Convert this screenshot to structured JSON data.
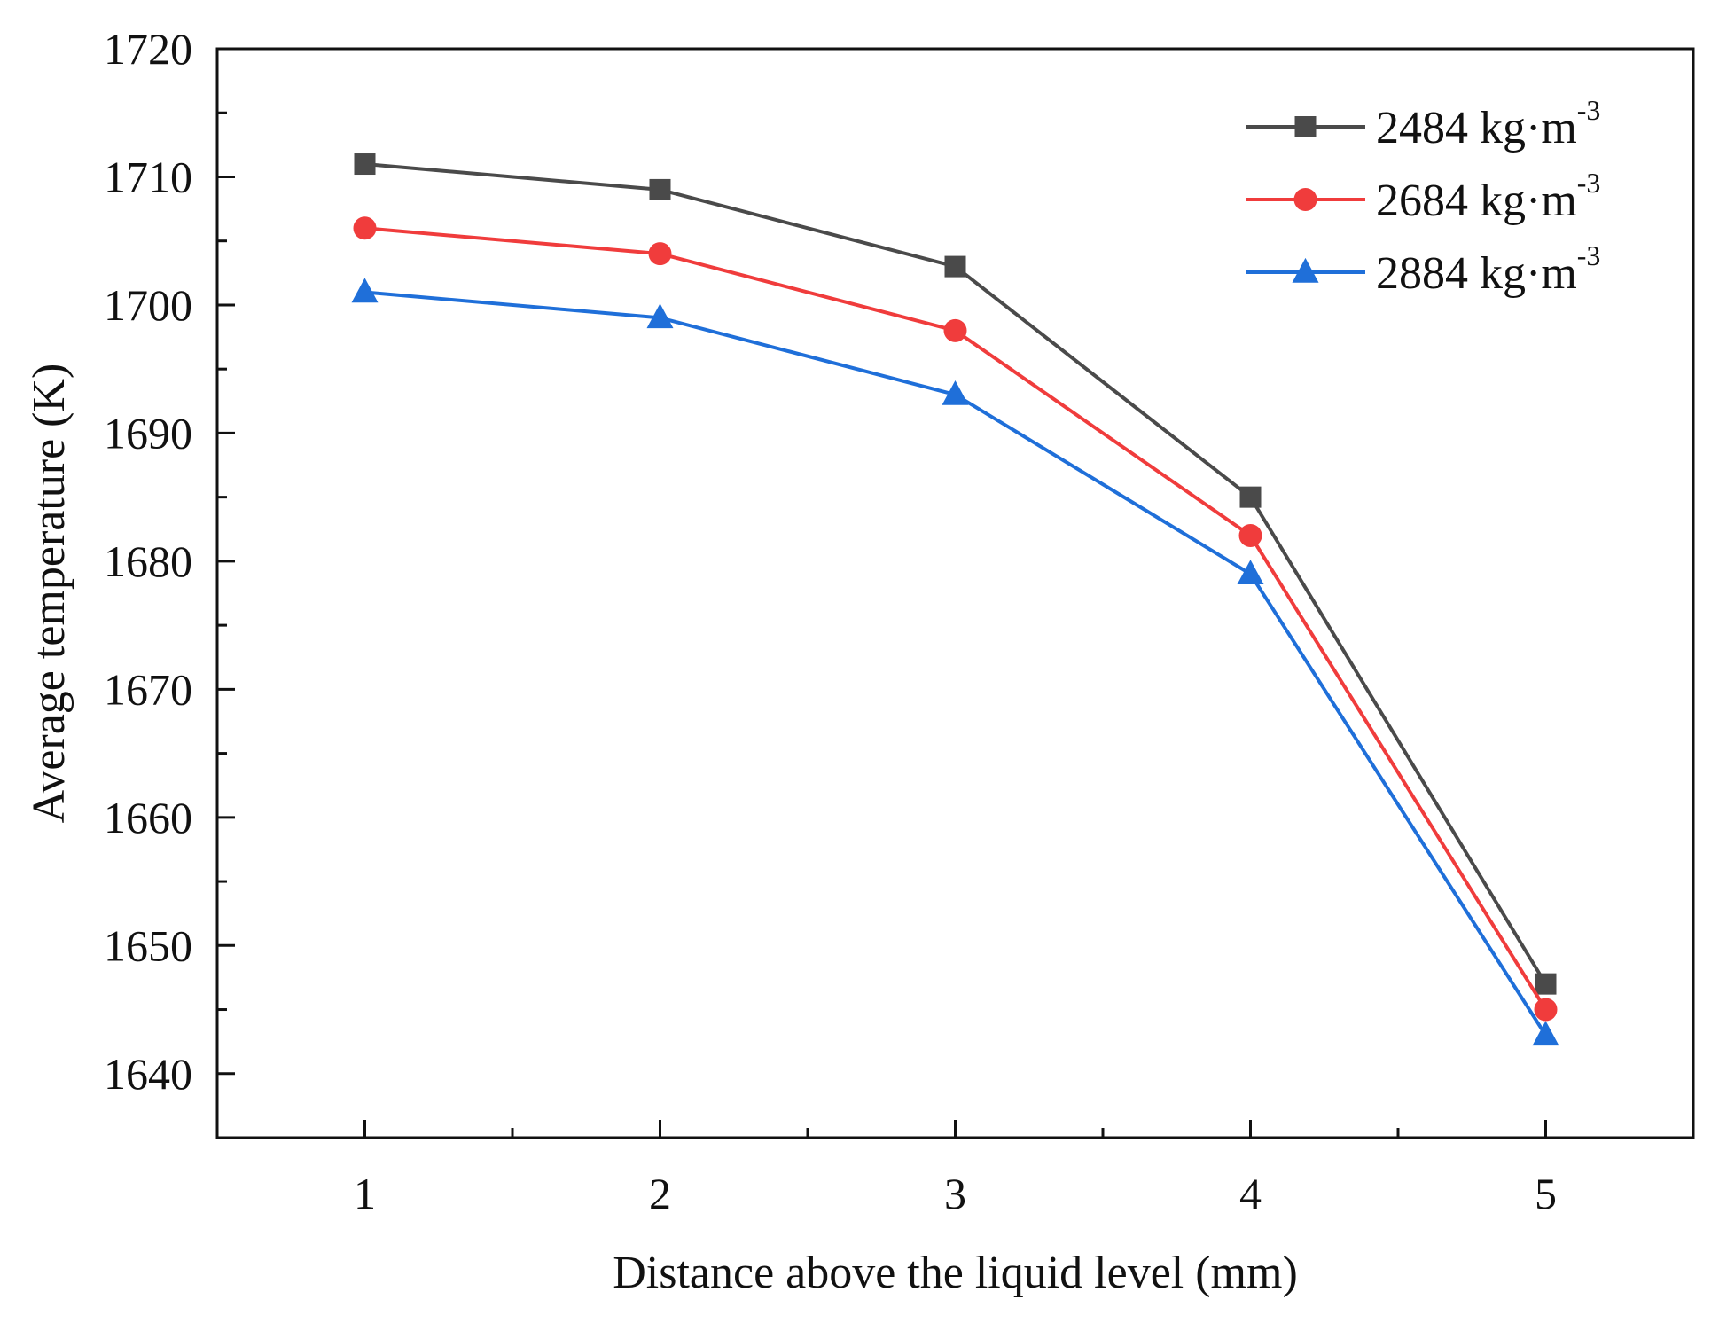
{
  "chart_data": {
    "type": "line",
    "title": "",
    "xlabel": "Distance above the liquid level (mm)",
    "ylabel": "Average temperature (K)",
    "x": [
      1,
      2,
      3,
      4,
      5
    ],
    "xlim": [
      0.5,
      5.5
    ],
    "ylim": [
      1635,
      1720
    ],
    "xticks": [
      1,
      2,
      3,
      4,
      5
    ],
    "yticks": [
      1640,
      1650,
      1660,
      1670,
      1680,
      1690,
      1700,
      1710,
      1720
    ],
    "grid": false,
    "legend_position": "top-right",
    "legend_unit": "kg·m",
    "legend_exponent": "-3",
    "series": [
      {
        "name": "2484 kg·m-3",
        "label_number": "2484",
        "color": "#4a4a4a",
        "marker": "square",
        "values": [
          1711,
          1709,
          1703,
          1685,
          1647
        ]
      },
      {
        "name": "2684 kg·m-3",
        "label_number": "2684",
        "color": "#f03c3c",
        "marker": "circle",
        "values": [
          1706,
          1704,
          1698,
          1682,
          1645
        ]
      },
      {
        "name": "2884 kg·m-3",
        "label_number": "2884",
        "color": "#1f6fd9",
        "marker": "triangle",
        "values": [
          1701,
          1699,
          1693,
          1679,
          1643
        ]
      }
    ]
  }
}
